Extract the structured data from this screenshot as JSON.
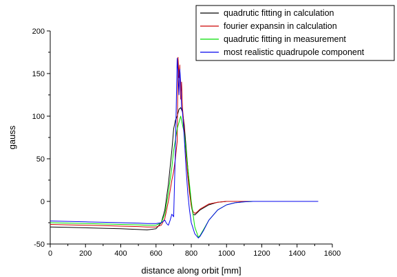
{
  "chart_data": {
    "type": "line",
    "title": "",
    "xlabel": "distance along orbit [mm]",
    "ylabel": "gauss",
    "xlim": [
      0,
      1600
    ],
    "ylim": [
      -50,
      200
    ],
    "xticks": [
      0,
      200,
      400,
      600,
      800,
      1000,
      1200,
      1400,
      1600
    ],
    "yticks": [
      -50,
      0,
      50,
      100,
      150,
      200
    ],
    "grid": false,
    "legend_position": "top-right",
    "series": [
      {
        "name": "quadrutic fitting in calculation",
        "color": "#000000",
        "x": [
          0,
          100,
          200,
          300,
          400,
          500,
          550,
          600,
          630,
          650,
          670,
          690,
          700,
          710,
          720,
          730,
          740,
          750,
          760,
          770,
          780,
          790,
          800,
          810,
          820,
          830,
          850,
          900,
          950,
          1000,
          1050,
          1100,
          1150,
          1200,
          1300,
          1400,
          1520
        ],
        "y": [
          -30,
          -30.5,
          -31,
          -31.5,
          -32,
          -33,
          -33.5,
          -32,
          -25,
          -10,
          20,
          60,
          85,
          95,
          100,
          108,
          110,
          105,
          90,
          65,
          40,
          15,
          -5,
          -15,
          -16,
          -14,
          -10,
          -4,
          -1,
          0,
          0,
          0,
          0,
          0,
          0,
          0,
          0
        ]
      },
      {
        "name": "fourier expansin in calculation",
        "color": "#cc0000",
        "x": [
          0,
          100,
          200,
          300,
          400,
          500,
          550,
          600,
          630,
          650,
          670,
          690,
          700,
          710,
          720,
          725,
          730,
          735,
          740,
          745,
          750,
          760,
          770,
          780,
          790,
          800,
          810,
          820,
          830,
          850,
          900,
          950,
          1000,
          1050,
          1100,
          1150,
          1200,
          1300,
          1400,
          1520
        ],
        "y": [
          -27,
          -27.5,
          -28,
          -28.5,
          -29,
          -29.5,
          -30,
          -30,
          -28,
          -20,
          0,
          25,
          35,
          50,
          70,
          169,
          145,
          160,
          120,
          140,
          110,
          85,
          55,
          30,
          10,
          -5,
          -12,
          -14,
          -13,
          -9,
          -3,
          -1,
          0,
          0,
          0,
          0,
          0,
          0,
          0,
          0
        ]
      },
      {
        "name": "quadrutic fitting in measurement",
        "color": "#00dd00",
        "x": [
          0,
          100,
          200,
          300,
          400,
          500,
          550,
          600,
          630,
          650,
          670,
          690,
          700,
          720,
          740,
          760,
          780,
          800,
          820,
          840,
          850,
          870,
          900,
          950,
          1000,
          1050,
          1100,
          1150,
          1200,
          1300,
          1400,
          1520
        ],
        "y": [
          -25,
          -25.5,
          -26,
          -26.5,
          -27,
          -27.5,
          -28,
          -28,
          -25,
          -15,
          10,
          40,
          60,
          85,
          100,
          80,
          40,
          0,
          -30,
          -42,
          -40,
          -33,
          -22,
          -10,
          -4,
          -1.5,
          -0.5,
          0,
          0,
          0,
          0,
          0
        ]
      },
      {
        "name": "most realistic quadrupole component",
        "color": "#0000ee",
        "x": [
          0,
          100,
          200,
          300,
          400,
          500,
          550,
          600,
          630,
          650,
          660,
          670,
          680,
          690,
          700,
          710,
          720,
          725,
          730,
          735,
          740,
          745,
          750,
          760,
          770,
          780,
          790,
          800,
          820,
          840,
          850,
          870,
          900,
          950,
          1000,
          1050,
          1100,
          1150,
          1200,
          1300,
          1400,
          1520
        ],
        "y": [
          -23,
          -23.5,
          -24,
          -24.5,
          -25,
          -25.5,
          -26,
          -26,
          -25,
          -22,
          -26,
          -28,
          -22,
          -15,
          -18,
          60,
          168,
          150,
          125,
          155,
          140,
          110,
          105,
          75,
          40,
          10,
          -10,
          -25,
          -38,
          -43,
          -41,
          -34,
          -22,
          -10,
          -4,
          -1.5,
          -0.5,
          0,
          0,
          0,
          0,
          0
        ]
      }
    ]
  }
}
